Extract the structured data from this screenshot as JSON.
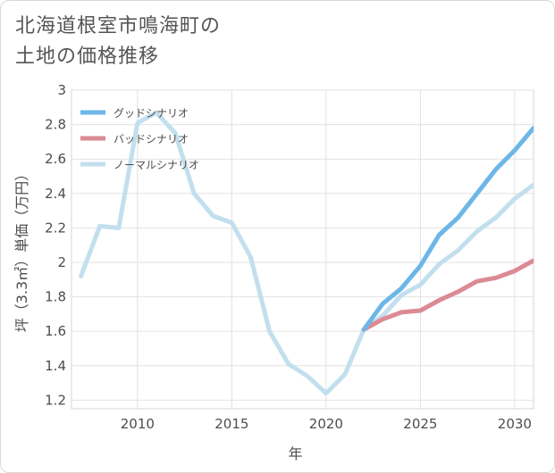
{
  "title_line1": "北海道根室市鳴海町の",
  "title_line2": "土地の価格推移",
  "chart_data": {
    "type": "line",
    "xlabel": "年",
    "ylabel": "坪（3.3㎡）単価（万円）",
    "xlim": [
      2006.5,
      2031
    ],
    "ylim": [
      1.15,
      3.0
    ],
    "x_ticks": [
      2010,
      2015,
      2020,
      2025,
      2030
    ],
    "y_ticks": [
      1.2,
      1.4,
      1.6,
      1.8,
      2,
      2.2,
      2.4,
      2.6,
      2.8,
      3
    ],
    "grid": true,
    "legend_position": "top-left",
    "series": [
      {
        "name": "ノーマルシナリオ",
        "color": "#c2dfee",
        "x": [
          2007,
          2008,
          2009,
          2010,
          2011,
          2012,
          2013,
          2014,
          2015,
          2016,
          2017,
          2018,
          2019,
          2020,
          2021,
          2022,
          2023,
          2024,
          2025,
          2026,
          2027,
          2028,
          2029,
          2030,
          2031
        ],
        "values": [
          1.92,
          2.21,
          2.2,
          2.81,
          2.87,
          2.75,
          2.4,
          2.27,
          2.23,
          2.03,
          1.6,
          1.41,
          1.34,
          1.24,
          1.35,
          1.61,
          1.69,
          1.81,
          1.87,
          1.99,
          2.07,
          2.18,
          2.26,
          2.37,
          2.45
        ]
      },
      {
        "name": "グッドシナリオ",
        "color": "#6cb7e8",
        "x": [
          2022,
          2023,
          2024,
          2025,
          2026,
          2027,
          2028,
          2029,
          2030,
          2031
        ],
        "values": [
          1.61,
          1.76,
          1.85,
          1.98,
          2.16,
          2.26,
          2.4,
          2.54,
          2.65,
          2.78
        ]
      },
      {
        "name": "バッドシナリオ",
        "color": "#dc8a93",
        "x": [
          2022,
          2023,
          2024,
          2025,
          2026,
          2027,
          2028,
          2029,
          2030,
          2031
        ],
        "values": [
          1.61,
          1.67,
          1.71,
          1.72,
          1.78,
          1.83,
          1.89,
          1.91,
          1.95,
          2.01
        ]
      }
    ],
    "legend": [
      {
        "name": "グッドシナリオ",
        "color": "#6cb7e8"
      },
      {
        "name": "バッドシナリオ",
        "color": "#dc8a93"
      },
      {
        "name": "ノーマルシナリオ",
        "color": "#c2dfee"
      }
    ]
  }
}
